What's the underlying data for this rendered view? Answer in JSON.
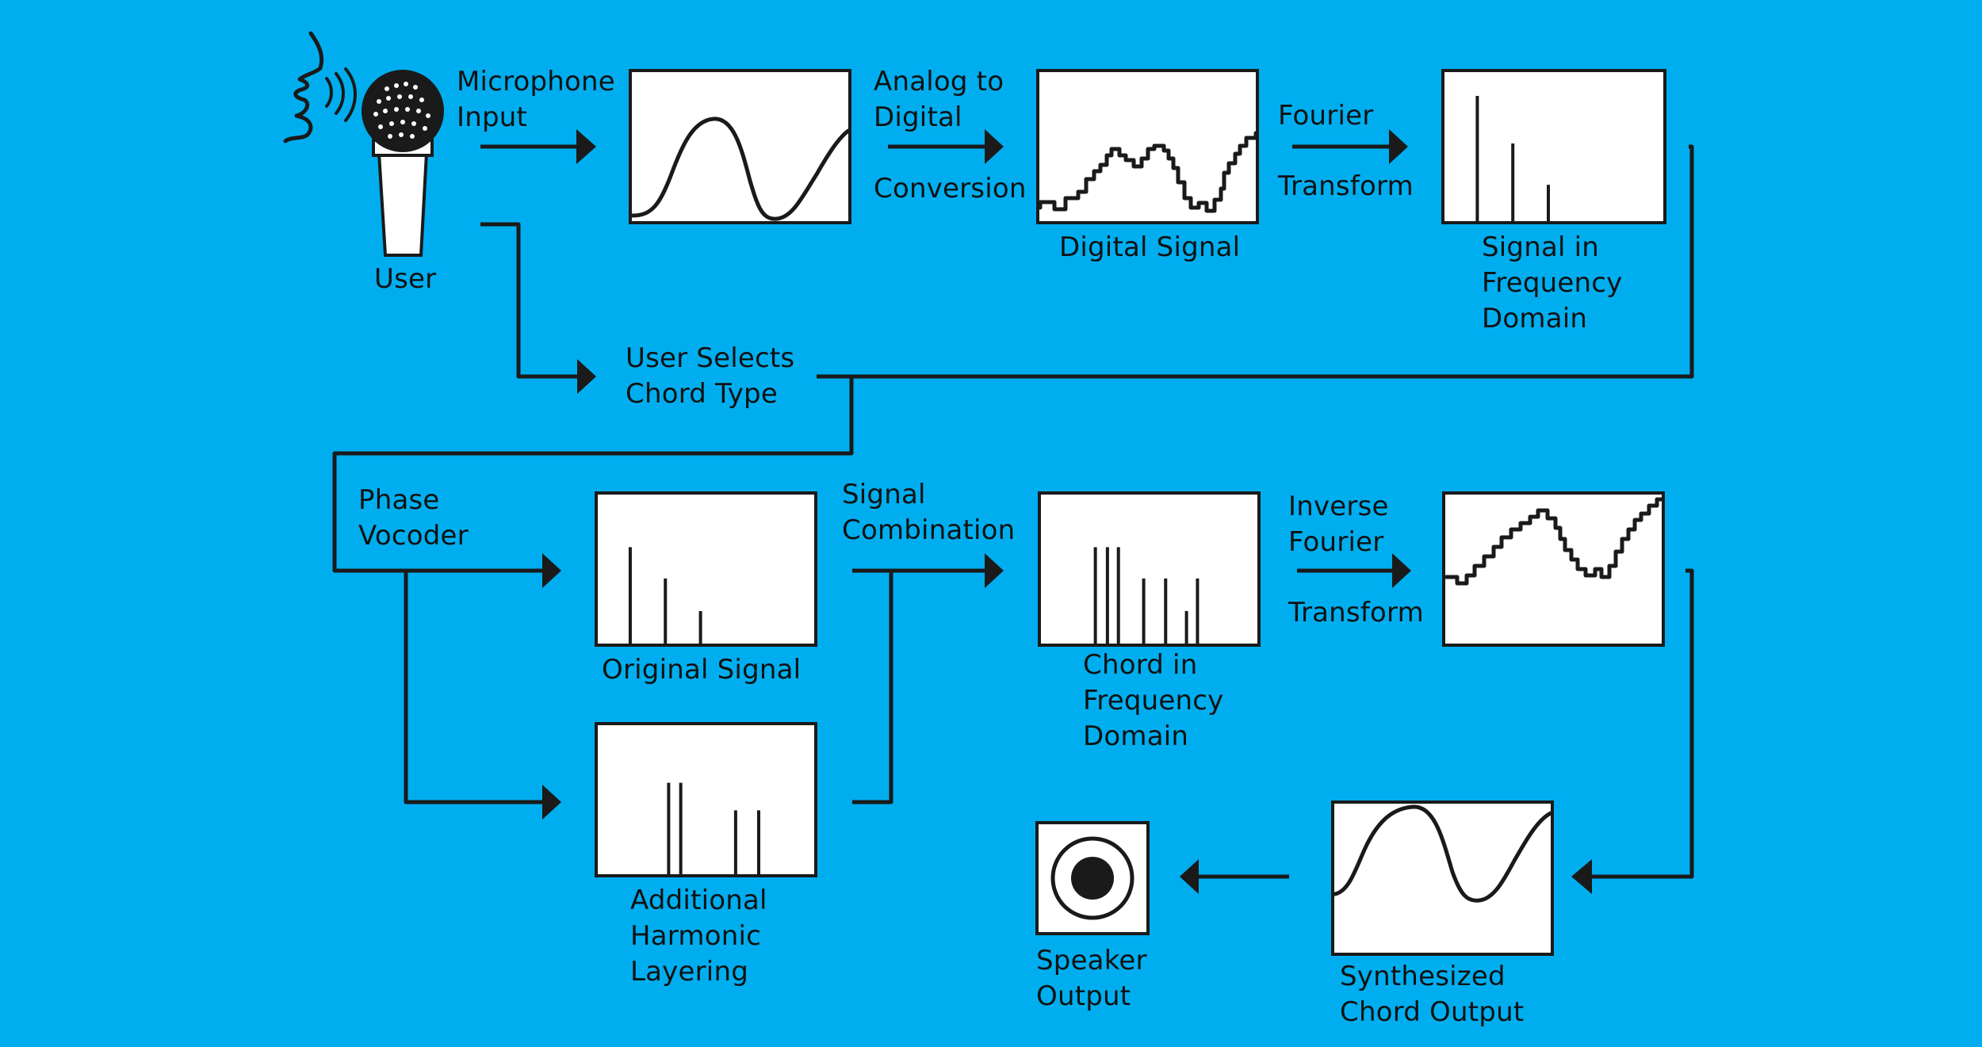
{
  "colors": {
    "background": "#00aeef",
    "ink": "#1a1a1a",
    "panel": "#ffffff"
  },
  "nodes": {
    "user": {
      "label": [
        "User"
      ],
      "icon": "speaking-person-microphone-icon"
    },
    "microphone_input": {
      "label": [
        "Microphone",
        "Input"
      ]
    },
    "analog_to_digital": {
      "label_top": [
        "Analog to",
        "Digital"
      ],
      "label_bottom": [
        "Conversion"
      ]
    },
    "digital_signal": {
      "label": [
        "Digital Signal"
      ]
    },
    "fourier_transform": {
      "label_top": [
        "Fourier"
      ],
      "label_bottom": [
        "Transform"
      ]
    },
    "signal_frequency_domain": {
      "label": [
        "Signal in",
        "Frequency",
        "Domain"
      ]
    },
    "user_selects_chord": {
      "label": [
        "User Selects",
        "Chord Type"
      ]
    },
    "phase_vocoder": {
      "label": [
        "Phase",
        "Vocoder"
      ]
    },
    "original_signal": {
      "label": [
        "Original Signal"
      ]
    },
    "additional_harmonic_layering": {
      "label": [
        "Additional",
        "Harmonic",
        "Layering"
      ]
    },
    "signal_combination": {
      "label": [
        "Signal",
        "Combination"
      ]
    },
    "chord_frequency_domain": {
      "label": [
        "Chord in",
        "Frequency",
        "Domain"
      ]
    },
    "inverse_fourier_transform": {
      "label_top": [
        "Inverse",
        "Fourier"
      ],
      "label_bottom": [
        "Transform"
      ]
    },
    "synthesized_chord_output": {
      "label": [
        "Synthesized",
        "Chord Output"
      ]
    },
    "speaker_output": {
      "label": [
        "Speaker",
        "Output"
      ],
      "icon": "speaker-icon"
    }
  },
  "spectra": {
    "signal_frequency_domain": [
      1.0,
      0.62,
      0.29
    ],
    "original_signal": [
      0.77,
      0.52,
      0.26
    ],
    "additional_harmonic_layering": [
      0.73,
      0.73,
      0.51,
      0.51
    ],
    "chord_frequency_domain": [
      0.77,
      0.77,
      0.77,
      0.52,
      0.52,
      0.26,
      0.52
    ]
  }
}
